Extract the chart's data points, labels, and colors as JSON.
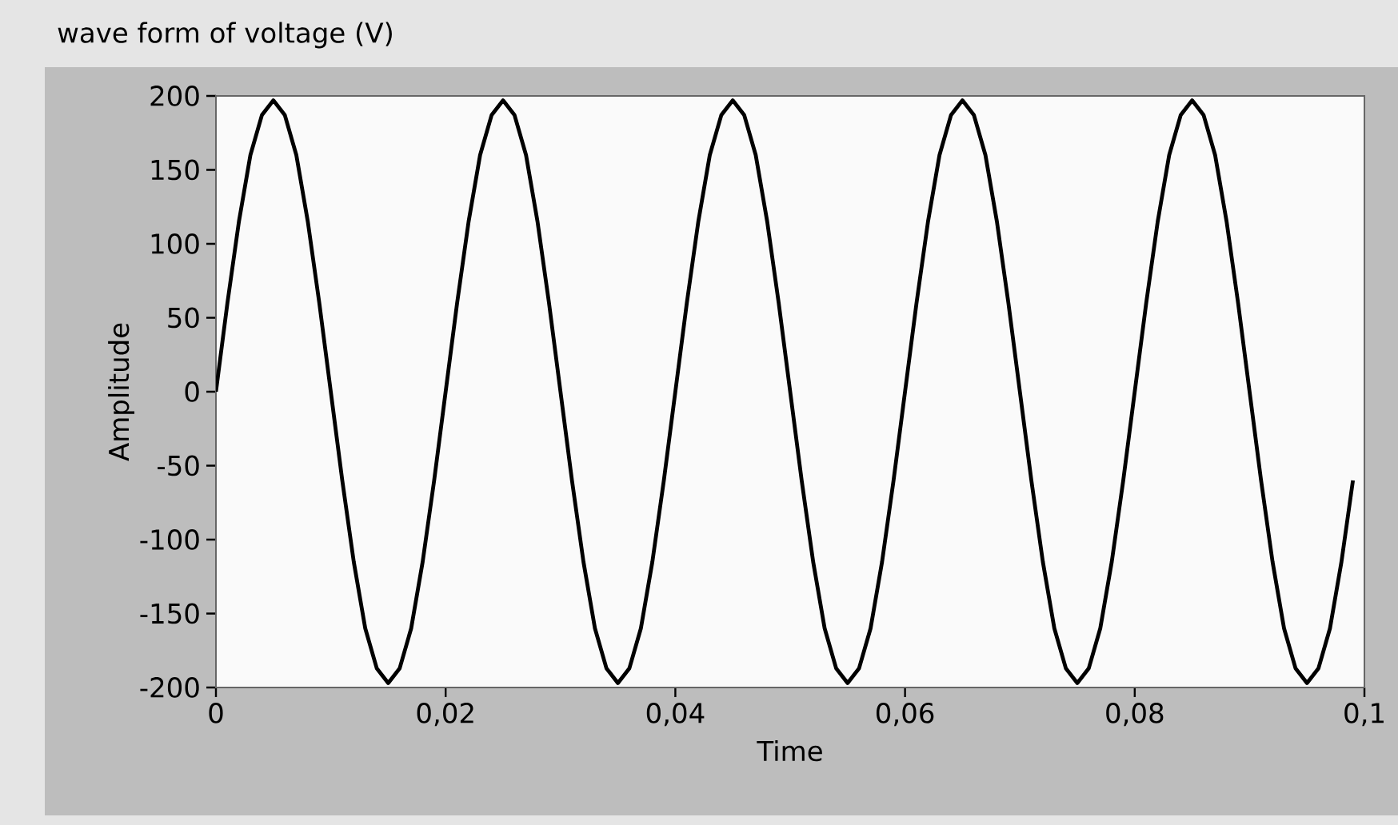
{
  "chart_data": {
    "type": "line",
    "title": "wave form of voltage (V)",
    "xlabel": "Time",
    "ylabel": "Amplitude",
    "x": [
      0,
      0.001,
      0.002,
      0.003,
      0.004,
      0.005,
      0.006,
      0.007,
      0.008,
      0.009,
      0.01,
      0.011,
      0.012,
      0.013,
      0.014,
      0.015,
      0.016,
      0.017,
      0.018,
      0.019,
      0.02,
      0.021,
      0.022,
      0.023,
      0.024,
      0.025,
      0.026,
      0.027,
      0.028,
      0.029,
      0.03,
      0.031,
      0.032,
      0.033,
      0.034,
      0.035,
      0.036,
      0.037,
      0.038,
      0.039,
      0.04,
      0.041,
      0.042,
      0.043,
      0.044,
      0.045,
      0.046,
      0.047,
      0.048,
      0.049,
      0.05,
      0.051,
      0.052,
      0.053,
      0.054,
      0.055,
      0.056,
      0.057,
      0.058,
      0.059,
      0.06,
      0.061,
      0.062,
      0.063,
      0.064,
      0.065,
      0.066,
      0.067,
      0.068,
      0.069,
      0.07,
      0.071,
      0.072,
      0.073,
      0.074,
      0.075,
      0.076,
      0.077,
      0.078,
      0.079,
      0.08,
      0.081,
      0.082,
      0.083,
      0.084,
      0.085,
      0.086,
      0.087,
      0.088,
      0.089,
      0.09,
      0.091,
      0.092,
      0.093,
      0.094,
      0.095,
      0.096,
      0.097,
      0.098,
      0.099
    ],
    "series": [
      {
        "color": "#000000",
        "values": [
          0,
          60,
          115,
          160,
          187,
          197,
          187,
          160,
          115,
          60,
          0,
          -60,
          -115,
          -160,
          -187,
          -197,
          -187,
          -160,
          -115,
          -60,
          0,
          60,
          115,
          160,
          187,
          197,
          187,
          160,
          115,
          60,
          0,
          -60,
          -115,
          -160,
          -187,
          -197,
          -187,
          -160,
          -115,
          -60,
          0,
          60,
          115,
          160,
          187,
          197,
          187,
          160,
          115,
          60,
          0,
          -60,
          -115,
          -160,
          -187,
          -197,
          -187,
          -160,
          -115,
          -60,
          0,
          60,
          115,
          160,
          187,
          197,
          187,
          160,
          115,
          60,
          0,
          -60,
          -115,
          -160,
          -187,
          -197,
          -187,
          -160,
          -115,
          -60,
          0,
          60,
          115,
          160,
          187,
          197,
          187,
          160,
          115,
          60,
          0,
          -60,
          -115,
          -160,
          -187,
          -197,
          -187,
          -160,
          -115,
          -60
        ]
      }
    ],
    "xlim": [
      0,
      0.1
    ],
    "ylim": [
      -200,
      200
    ],
    "xticks": [
      0,
      {
        "value": 0.02,
        "label": "0,02"
      },
      {
        "value": 0.04,
        "label": "0,04"
      },
      {
        "value": 0.06,
        "label": "0,06"
      },
      {
        "value": 0.08,
        "label": "0,08"
      },
      {
        "value": 0.1,
        "label": "0,1"
      }
    ],
    "yticks": [
      -200,
      -150,
      -100,
      -50,
      0,
      50,
      100,
      150,
      200
    ],
    "marker": "none",
    "line_style": "solid"
  }
}
